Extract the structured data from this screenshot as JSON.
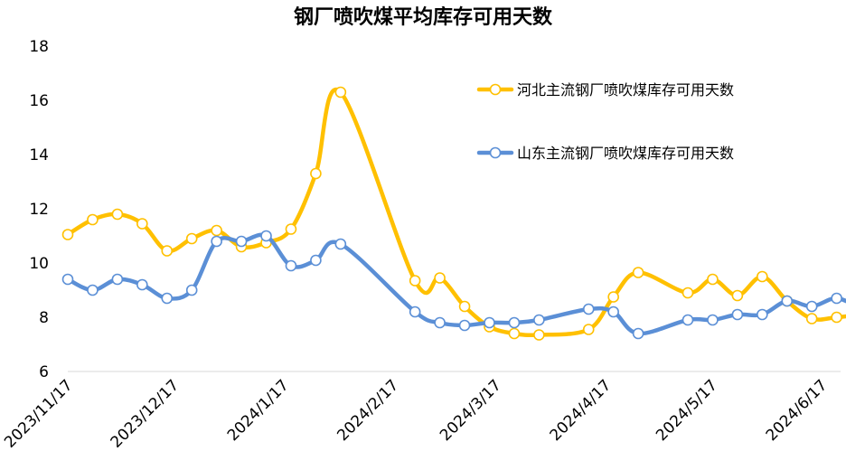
{
  "chart_data": {
    "type": "line",
    "title": "钢厂喷吹煤平均库存可用天数",
    "xlabel": "",
    "ylabel": "",
    "ylim": [
      6,
      18
    ],
    "yticks": [
      6,
      8,
      10,
      12,
      14,
      16,
      18
    ],
    "xlim": [
      "2023-11-17",
      "2024-06-28"
    ],
    "xticks": [
      "2023/11/17",
      "2023/12/17",
      "2024/1/17",
      "2024/2/17",
      "2024/3/17",
      "2024/4/17",
      "2024/5/17",
      "2024/6/17"
    ],
    "grid": false,
    "legend_position": "upper-right",
    "series": [
      {
        "name": "河北主流钢厂喷吹煤库存可用天数",
        "color": "#FFC000",
        "points": [
          [
            "2023-11-17",
            11.05
          ],
          [
            "2023-11-24",
            11.6
          ],
          [
            "2023-12-01",
            11.8
          ],
          [
            "2023-12-08",
            11.45
          ],
          [
            "2023-12-15",
            10.45
          ],
          [
            "2023-12-22",
            10.9
          ],
          [
            "2023-12-29",
            11.2
          ],
          [
            "2024-01-05",
            10.6
          ],
          [
            "2024-01-12",
            10.75
          ],
          [
            "2024-01-19",
            11.25
          ],
          [
            "2024-01-26",
            13.3
          ],
          [
            "2024-02-02",
            16.3
          ],
          [
            "2024-02-23",
            9.35
          ],
          [
            "2024-03-01",
            9.45
          ],
          [
            "2024-03-08",
            8.4
          ],
          [
            "2024-03-15",
            7.65
          ],
          [
            "2024-03-22",
            7.4
          ],
          [
            "2024-03-29",
            7.35
          ],
          [
            "2024-04-12",
            7.55
          ],
          [
            "2024-04-19",
            8.75
          ],
          [
            "2024-04-26",
            9.65
          ],
          [
            "2024-05-10",
            8.9
          ],
          [
            "2024-05-17",
            9.4
          ],
          [
            "2024-05-24",
            8.8
          ],
          [
            "2024-05-31",
            9.5
          ],
          [
            "2024-06-07",
            8.6
          ],
          [
            "2024-06-14",
            7.95
          ],
          [
            "2024-06-21",
            8.0
          ],
          [
            "2024-06-28",
            8.1
          ]
        ]
      },
      {
        "name": "山东主流钢厂喷吹煤库存可用天数",
        "color": "#5B8FD6",
        "points": [
          [
            "2023-11-17",
            9.4
          ],
          [
            "2023-11-24",
            9.0
          ],
          [
            "2023-12-01",
            9.4
          ],
          [
            "2023-12-08",
            9.2
          ],
          [
            "2023-12-15",
            8.7
          ],
          [
            "2023-12-22",
            9.0
          ],
          [
            "2023-12-29",
            10.8
          ],
          [
            "2024-01-05",
            10.8
          ],
          [
            "2024-01-12",
            11.0
          ],
          [
            "2024-01-19",
            9.9
          ],
          [
            "2024-01-26",
            10.1
          ],
          [
            "2024-02-02",
            10.7
          ],
          [
            "2024-02-23",
            8.2
          ],
          [
            "2024-03-01",
            7.8
          ],
          [
            "2024-03-08",
            7.7
          ],
          [
            "2024-03-15",
            7.8
          ],
          [
            "2024-03-22",
            7.8
          ],
          [
            "2024-03-29",
            7.9
          ],
          [
            "2024-04-12",
            8.3
          ],
          [
            "2024-04-19",
            8.2
          ],
          [
            "2024-04-26",
            7.4
          ],
          [
            "2024-05-10",
            7.9
          ],
          [
            "2024-05-17",
            7.9
          ],
          [
            "2024-05-24",
            8.1
          ],
          [
            "2024-05-31",
            8.1
          ],
          [
            "2024-06-07",
            8.6
          ],
          [
            "2024-06-14",
            8.4
          ],
          [
            "2024-06-21",
            8.7
          ],
          [
            "2024-06-28",
            8.3
          ]
        ]
      }
    ]
  }
}
